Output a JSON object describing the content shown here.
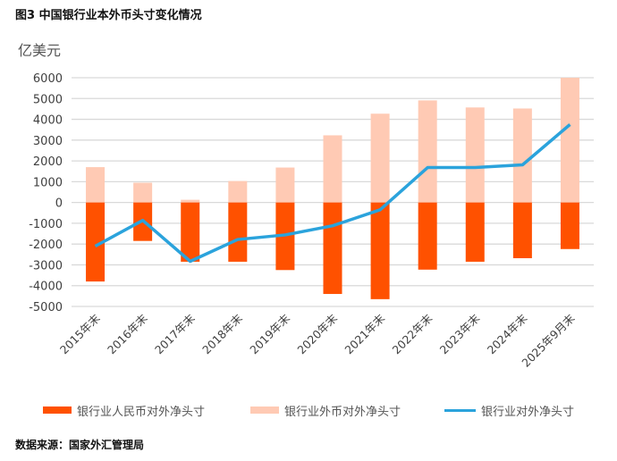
{
  "title": "图3 中国银行业本外币头寸变化情况",
  "source": "数据来源：国家外汇管理局",
  "colors": {
    "rmb": "#FF5100",
    "fx": "#FFCAB4",
    "line": "#2BA3DC",
    "grid": "#D9D9D9",
    "tick": "#404040"
  },
  "chart_data": {
    "type": "bar",
    "title": "图3 中国银行业本外币头寸变化情况",
    "ylabel": "亿美元",
    "xlabel": "",
    "ylim": [
      -5000,
      6000
    ],
    "yticks": [
      6000,
      5000,
      4000,
      3000,
      2000,
      1000,
      0,
      -1000,
      -2000,
      -3000,
      -4000,
      -5000
    ],
    "grid": true,
    "legend_position": "bottom",
    "categories": [
      "2015年末",
      "2016年末",
      "2017年末",
      "2018年末",
      "2019年末",
      "2020年末",
      "2021年末",
      "2022年末",
      "2023年末",
      "2024年末",
      "2025年9月末"
    ],
    "series": [
      {
        "name": "银行业人民币对外净头寸",
        "type": "bar",
        "values": [
          -3800,
          -1850,
          -2850,
          -2850,
          -3250,
          -4400,
          -4650,
          -3230,
          -2850,
          -2680,
          -2240
        ]
      },
      {
        "name": "银行业外币对外净头寸",
        "type": "bar",
        "values": [
          1700,
          950,
          130,
          1030,
          1680,
          3230,
          4270,
          4910,
          4570,
          4520,
          6000
        ]
      },
      {
        "name": "银行业对外净头寸",
        "type": "line",
        "values": [
          -2100,
          -860,
          -2830,
          -1780,
          -1560,
          -1120,
          -350,
          1680,
          1680,
          1810,
          3750
        ]
      }
    ]
  }
}
